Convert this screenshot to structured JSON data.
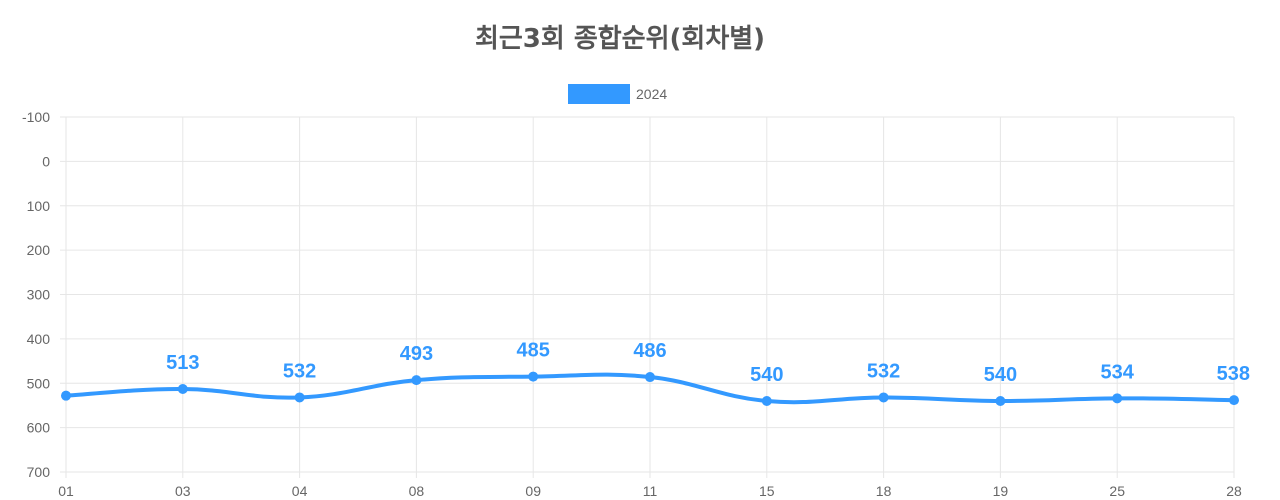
{
  "chart_data": {
    "type": "line",
    "title": "최근3회 종합순위(회차별)",
    "categories": [
      "01",
      "03",
      "04",
      "08",
      "09",
      "11",
      "15",
      "18",
      "19",
      "25",
      "28"
    ],
    "series": [
      {
        "name": "2024",
        "values": [
          528,
          513,
          532,
          493,
          485,
          486,
          540,
          532,
          540,
          534,
          538
        ],
        "color": "#3399ff"
      }
    ],
    "data_labels": [
      "",
      "513",
      "532",
      "493",
      "485",
      "486",
      "540",
      "532",
      "540",
      "534",
      "538"
    ],
    "y_axis": {
      "reversed": true,
      "min": -100,
      "max": 700,
      "ticks": [
        "-100",
        "0",
        "100",
        "200",
        "300",
        "400",
        "500",
        "600",
        "700"
      ]
    },
    "xlabel": "",
    "ylabel": "",
    "grid": true,
    "legend_position": "top-center",
    "colors": {
      "series": "#3399ff",
      "grid": "#e6e6e6",
      "title": "#555555",
      "tick": "#666666"
    }
  }
}
